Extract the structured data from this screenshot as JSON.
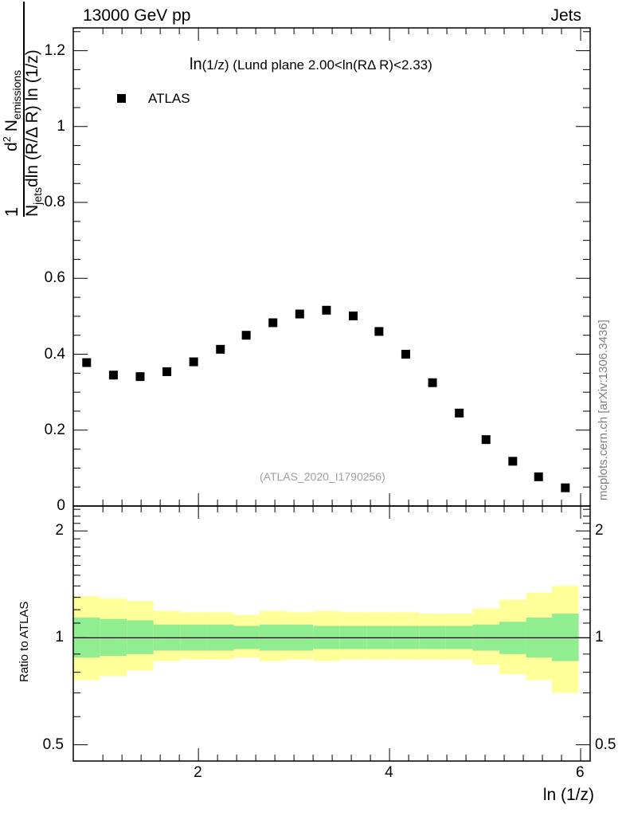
{
  "header": {
    "left": "13000 GeV pp",
    "right": "Jets"
  },
  "side_label": "mcplots.cern.ch [arXiv:1306.3436]",
  "chart_data": [
    {
      "type": "scatter",
      "title": "ln(1/z) (Lund plane 2.00<ln(RΔ R)<2.33)",
      "title_parts": {
        "main": "ln",
        "sub": "(1/z)",
        "rest": " (Lund plane 2.00<ln(RΔ R)<2.33)"
      },
      "ylabel_parts": {
        "numerator": "d",
        "num_sup": "2",
        "num_main": " N",
        "num_sub": "emissions",
        "denominator": "N",
        "den_sub": "jets",
        "den_rest": "dln (R/Δ R) ln (1/z)",
        "one": "1"
      },
      "watermark": "(ATLAS_2020_I1790256)",
      "legend": [
        {
          "name": "ATLAS",
          "marker": "square",
          "color": "#000000",
          "position": "top-left"
        }
      ],
      "xlim": [
        0.69,
        6.1
      ],
      "ylim": [
        0.0,
        1.26
      ],
      "ytick_labels": [
        "0",
        "0.2",
        "0.4",
        "0.6",
        "0.8",
        "1",
        "1.2"
      ],
      "series": [
        {
          "name": "ATLAS",
          "x": [
            0.83,
            1.11,
            1.39,
            1.67,
            1.95,
            2.23,
            2.5,
            2.78,
            3.06,
            3.34,
            3.62,
            3.89,
            4.17,
            4.45,
            4.73,
            5.01,
            5.29,
            5.56,
            5.84
          ],
          "y": [
            0.378,
            0.345,
            0.341,
            0.354,
            0.38,
            0.413,
            0.45,
            0.483,
            0.506,
            0.516,
            0.501,
            0.46,
            0.4,
            0.325,
            0.245,
            0.175,
            0.118,
            0.077,
            0.048
          ]
        }
      ]
    },
    {
      "type": "area",
      "ylabel": "Ratio to ATLAS",
      "xlabel": "ln (1/z)",
      "xlim": [
        0.69,
        6.1
      ],
      "ylim": [
        0.45,
        2.35
      ],
      "yscale": "log",
      "xtick_labels": [
        "2",
        "4",
        "6"
      ],
      "ytick_labels": [
        "0.5",
        "1",
        "2"
      ],
      "reference_line": 1.0,
      "bin_edges": [
        0.69,
        0.97,
        1.25,
        1.53,
        1.81,
        2.09,
        2.37,
        2.64,
        2.92,
        3.2,
        3.48,
        3.76,
        4.03,
        4.31,
        4.59,
        4.87,
        5.15,
        5.43,
        5.7,
        5.98
      ],
      "inner_band": {
        "name": "stat",
        "color": "#90ee90",
        "low": [
          0.88,
          0.89,
          0.9,
          0.92,
          0.92,
          0.92,
          0.93,
          0.92,
          0.92,
          0.93,
          0.93,
          0.93,
          0.93,
          0.93,
          0.93,
          0.92,
          0.9,
          0.88,
          0.86
        ],
        "high": [
          1.14,
          1.13,
          1.12,
          1.09,
          1.09,
          1.09,
          1.08,
          1.09,
          1.09,
          1.08,
          1.08,
          1.08,
          1.08,
          1.08,
          1.08,
          1.09,
          1.11,
          1.14,
          1.17
        ]
      },
      "outer_band": {
        "name": "total",
        "color": "#ffff99",
        "low": [
          0.76,
          0.78,
          0.81,
          0.86,
          0.87,
          0.87,
          0.88,
          0.86,
          0.87,
          0.86,
          0.87,
          0.87,
          0.87,
          0.87,
          0.87,
          0.84,
          0.79,
          0.76,
          0.7
        ],
        "high": [
          1.31,
          1.29,
          1.27,
          1.19,
          1.18,
          1.18,
          1.16,
          1.19,
          1.18,
          1.19,
          1.18,
          1.18,
          1.18,
          1.17,
          1.17,
          1.21,
          1.28,
          1.34,
          1.4
        ]
      }
    }
  ]
}
